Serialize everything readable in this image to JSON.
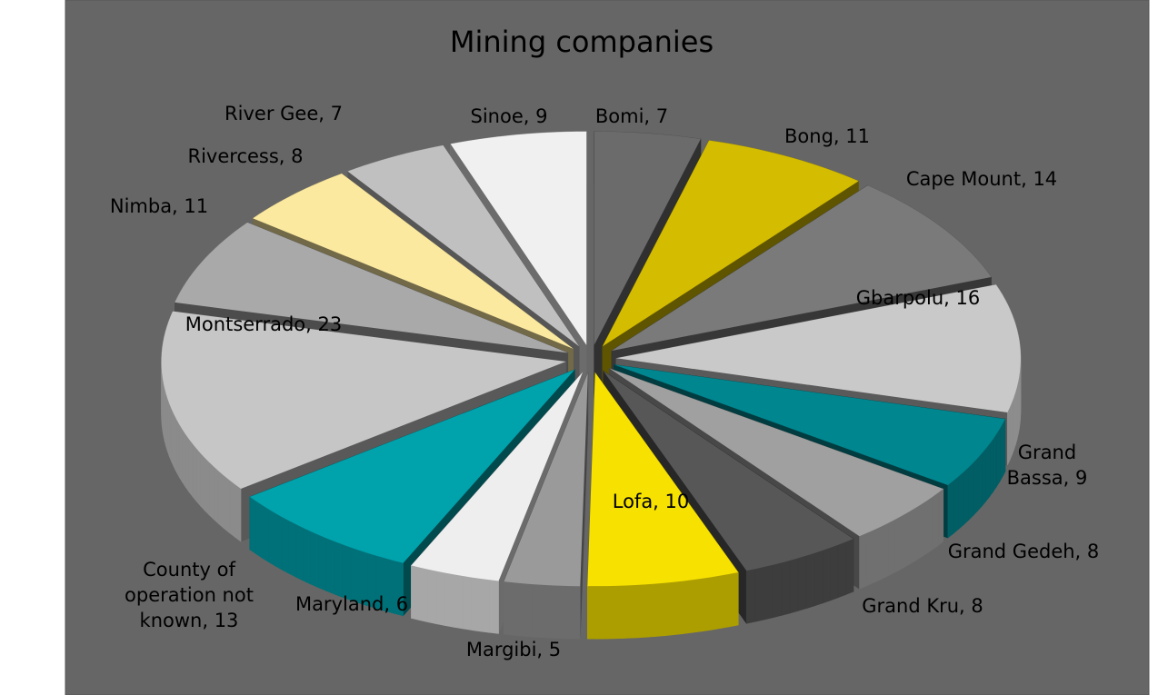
{
  "chart_data": {
    "type": "pie",
    "title": "Mining companies",
    "values": [
      7,
      11,
      14,
      16,
      9,
      8,
      8,
      10,
      5,
      6,
      13,
      23,
      11,
      8,
      7,
      9
    ],
    "value_labels": [
      "Bomi, 7",
      "Bong, 11",
      "Cape Mount, 14",
      "Gbarpolu, 16",
      "Grand Bassa, 9",
      "Grand Gedeh, 8",
      "Grand Kru, 8",
      "Lofa, 10",
      "Margibi, 5",
      "Maryland, 6",
      "County of operation not known, 13",
      "Montserrado, 23",
      "Nimba, 11",
      "Rivercess, 8",
      "River Gee, 7",
      "Sinoe, 9"
    ],
    "colors": [
      "#6b6b6b",
      "#d4bc00",
      "#7a7a7a",
      "#c9c9c9",
      "#00868f",
      "#a0a0a0",
      "#575757",
      "#f7e100",
      "#9a9a9a",
      "#eeeeee",
      "#00a2ac",
      "#c6c6c6",
      "#a9a9a9",
      "#fbe9a0",
      "#c0c0c0",
      "#f0f0f0"
    ]
  }
}
